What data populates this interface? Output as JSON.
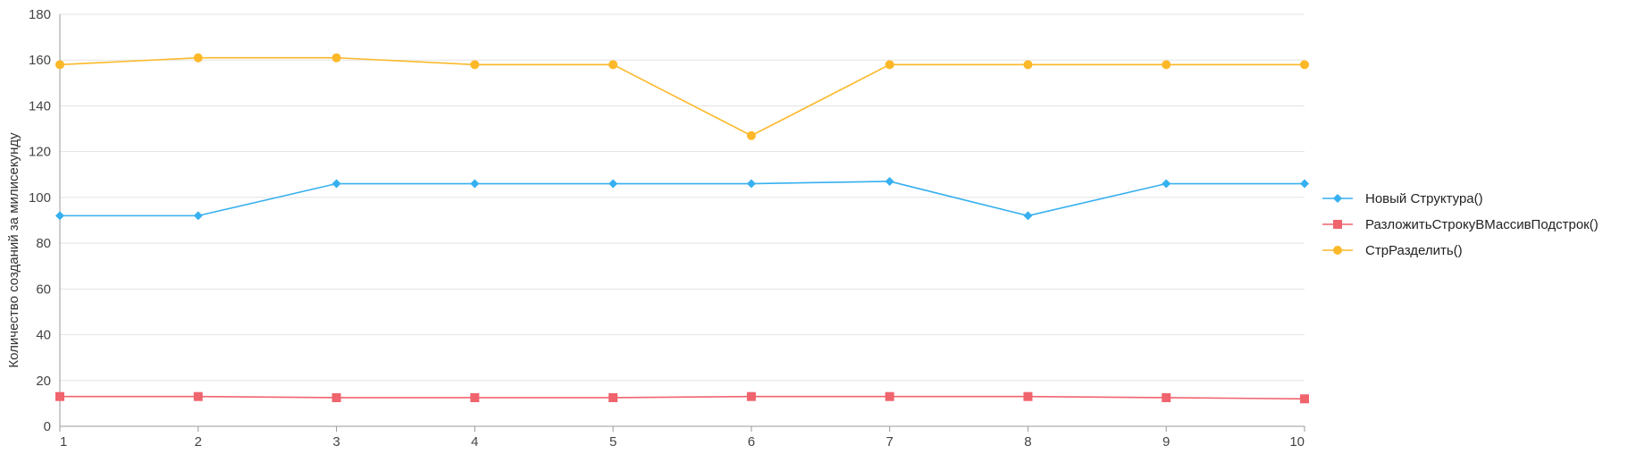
{
  "chart_data": {
    "type": "line",
    "title": "",
    "xlabel": "",
    "ylabel": "Количество созданий за милисекунду",
    "ylim": [
      0,
      180
    ],
    "yticks": [
      0,
      20,
      40,
      60,
      80,
      100,
      120,
      140,
      160,
      180
    ],
    "x": [
      1,
      2,
      3,
      4,
      5,
      6,
      7,
      8,
      9,
      10
    ],
    "grid": true,
    "legend_position": "right",
    "series": [
      {
        "name": "Новый Структура()",
        "color": "#36b0f0",
        "marker": "diamond",
        "values": [
          92,
          92,
          106,
          106,
          106,
          106,
          107,
          92,
          106,
          106
        ]
      },
      {
        "name": "РазложитьСтрокуВМассивПодстрок()",
        "color": "#f0646e",
        "marker": "square",
        "values": [
          13,
          13,
          12.5,
          12.5,
          12.5,
          13,
          13,
          13,
          12.5,
          12
        ]
      },
      {
        "name": "СтрРазделить()",
        "color": "#fcb828",
        "marker": "circle",
        "values": [
          158,
          161,
          161,
          158,
          158,
          127,
          158,
          158,
          158,
          158
        ]
      }
    ]
  }
}
